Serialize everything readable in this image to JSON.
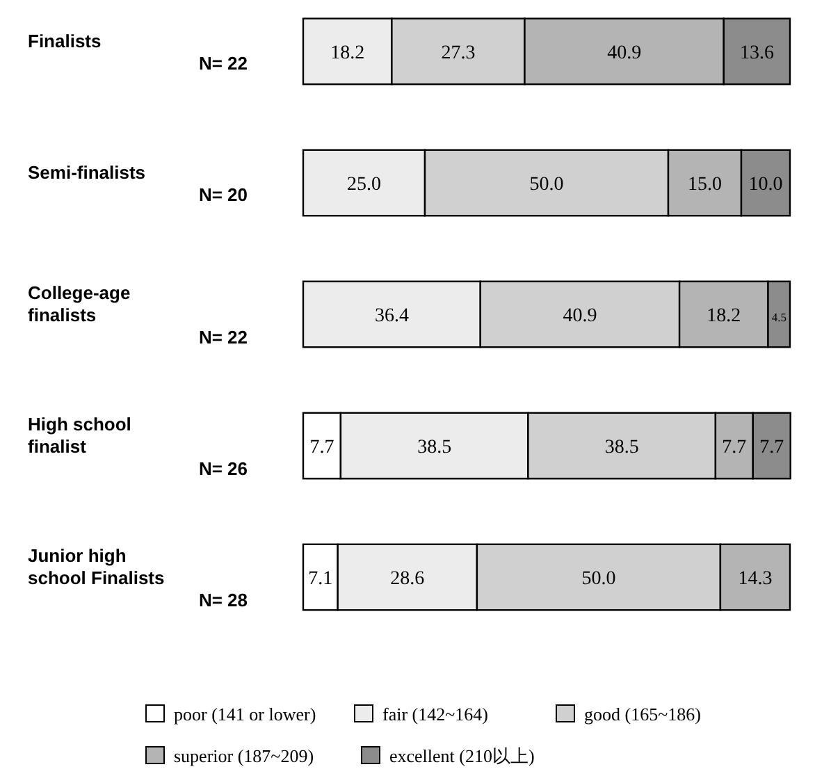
{
  "chart_data": {
    "type": "bar",
    "orientation": "horizontal",
    "stacked": true,
    "legend": "bottom",
    "xlim": [
      0,
      100
    ],
    "categories": [
      "Finalists\nN= 22",
      "Semi-finalists\nN= 20",
      "College-age\nfinalists\nN= 22",
      "High school\nfinalist\nN= 26",
      "Junior high\nschool Finalists\nN= 28"
    ],
    "series": [
      {
        "name": "poor (141 or lower)",
        "color": "#ffffff",
        "values": [
          null,
          null,
          null,
          7.7,
          7.1
        ],
        "value_labels": [
          null,
          null,
          null,
          "7.7",
          "7.1"
        ]
      },
      {
        "name": "fair (142~164)",
        "color": "#ececec",
        "values": [
          18.2,
          25.0,
          36.4,
          38.5,
          28.6
        ],
        "value_labels": [
          "18.2",
          "25.0",
          "36.4",
          "38.5",
          "28.6"
        ]
      },
      {
        "name": "good (165~186)",
        "color": "#d0d0d0",
        "values": [
          27.3,
          50.0,
          40.9,
          38.5,
          50.0
        ],
        "value_labels": [
          "27.3",
          "50.0",
          "40.9",
          "38.5",
          "50.0"
        ]
      },
      {
        "name": "superior (187~209)",
        "color": "#b4b4b4",
        "values": [
          40.9,
          15.0,
          18.2,
          7.7,
          14.3
        ],
        "value_labels": [
          "40.9",
          "15.0",
          "18.2",
          "7.7",
          "14.3"
        ]
      },
      {
        "name": "excellent (210以上)",
        "color": "#8c8c8c",
        "values": [
          13.6,
          10.0,
          4.5,
          7.7,
          null
        ],
        "value_labels": [
          "13.6",
          "10.0",
          "4.5",
          "7.7",
          null
        ]
      }
    ]
  }
}
